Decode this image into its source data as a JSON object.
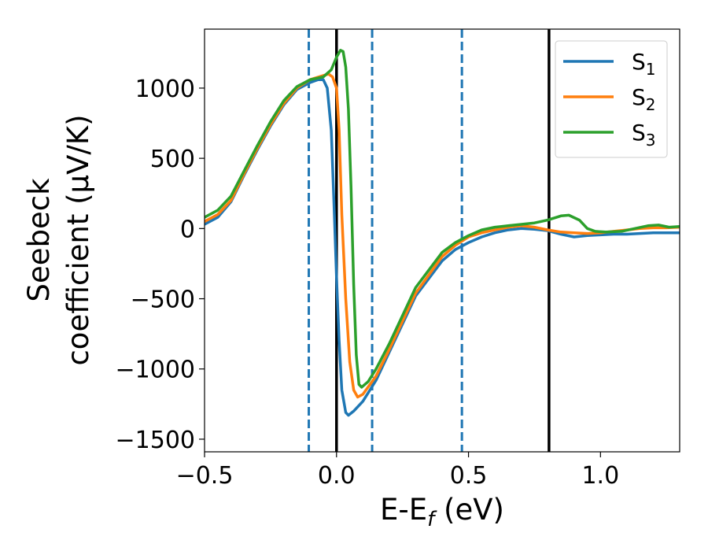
{
  "chart_data": {
    "type": "line",
    "xlabel": "E-E",
    "xlabel_sub": "f",
    "xlabel_unit": " (eV)",
    "ylabel_line1": "Seebeck",
    "ylabel_line2": "coefficient  (μV/K)",
    "xlim": [
      -0.5,
      1.3
    ],
    "ylim": [
      -1590,
      1420
    ],
    "x_ticks": [
      -0.5,
      0.0,
      0.5,
      1.0
    ],
    "x_tick_labels": [
      "−0.5",
      "0.0",
      "0.5",
      "1.0"
    ],
    "y_ticks": [
      1000,
      500,
      0,
      -500,
      -1000,
      -1500
    ],
    "y_tick_labels": [
      "1000",
      "500",
      "0",
      "−500",
      "−1000",
      "−1500"
    ],
    "grid": false,
    "legend_position": "top-right",
    "vertical_lines": [
      {
        "x": -0.105,
        "style": "dashed",
        "color": "#1f77b4"
      },
      {
        "x": 0.0,
        "style": "solid",
        "color": "#000000"
      },
      {
        "x": 0.135,
        "style": "dashed",
        "color": "#1f77b4"
      },
      {
        "x": 0.475,
        "style": "dashed",
        "color": "#1f77b4"
      },
      {
        "x": 0.805,
        "style": "solid",
        "color": "#000000"
      }
    ],
    "series": [
      {
        "name": "S",
        "name_sub": "1",
        "color": "#1f77b4",
        "points": [
          [
            -0.5,
            30
          ],
          [
            -0.45,
            80
          ],
          [
            -0.4,
            190
          ],
          [
            -0.35,
            380
          ],
          [
            -0.3,
            560
          ],
          [
            -0.25,
            730
          ],
          [
            -0.2,
            880
          ],
          [
            -0.15,
            990
          ],
          [
            -0.1,
            1040
          ],
          [
            -0.07,
            1060
          ],
          [
            -0.05,
            1060
          ],
          [
            -0.035,
            1000
          ],
          [
            -0.02,
            700
          ],
          [
            -0.01,
            200
          ],
          [
            0.0,
            -350
          ],
          [
            0.01,
            -800
          ],
          [
            0.02,
            -1150
          ],
          [
            0.035,
            -1310
          ],
          [
            0.045,
            -1330
          ],
          [
            0.065,
            -1300
          ],
          [
            0.1,
            -1230
          ],
          [
            0.15,
            -1080
          ],
          [
            0.2,
            -880
          ],
          [
            0.3,
            -480
          ],
          [
            0.4,
            -230
          ],
          [
            0.45,
            -150
          ],
          [
            0.5,
            -100
          ],
          [
            0.55,
            -60
          ],
          [
            0.6,
            -30
          ],
          [
            0.65,
            -10
          ],
          [
            0.7,
            0
          ],
          [
            0.75,
            -5
          ],
          [
            0.8,
            -15
          ],
          [
            0.85,
            -40
          ],
          [
            0.9,
            -60
          ],
          [
            0.95,
            -50
          ],
          [
            1.0,
            -45
          ],
          [
            1.05,
            -40
          ],
          [
            1.1,
            -40
          ],
          [
            1.15,
            -35
          ],
          [
            1.2,
            -30
          ],
          [
            1.25,
            -30
          ],
          [
            1.3,
            -30
          ]
        ]
      },
      {
        "name": "S",
        "name_sub": "2",
        "color": "#ff7f0e",
        "points": [
          [
            -0.5,
            50
          ],
          [
            -0.45,
            100
          ],
          [
            -0.4,
            200
          ],
          [
            -0.35,
            390
          ],
          [
            -0.3,
            570
          ],
          [
            -0.25,
            740
          ],
          [
            -0.2,
            890
          ],
          [
            -0.15,
            1000
          ],
          [
            -0.1,
            1060
          ],
          [
            -0.05,
            1090
          ],
          [
            -0.03,
            1100
          ],
          [
            -0.015,
            1080
          ],
          [
            0.0,
            1000
          ],
          [
            0.01,
            700
          ],
          [
            0.02,
            100
          ],
          [
            0.035,
            -500
          ],
          [
            0.05,
            -950
          ],
          [
            0.065,
            -1150
          ],
          [
            0.08,
            -1200
          ],
          [
            0.1,
            -1180
          ],
          [
            0.15,
            -1050
          ],
          [
            0.2,
            -860
          ],
          [
            0.3,
            -460
          ],
          [
            0.4,
            -200
          ],
          [
            0.45,
            -120
          ],
          [
            0.5,
            -60
          ],
          [
            0.55,
            -30
          ],
          [
            0.6,
            -10
          ],
          [
            0.65,
            10
          ],
          [
            0.7,
            20
          ],
          [
            0.75,
            10
          ],
          [
            0.8,
            -10
          ],
          [
            0.85,
            -25
          ],
          [
            0.9,
            -30
          ],
          [
            0.95,
            -35
          ],
          [
            1.0,
            -30
          ],
          [
            1.05,
            -20
          ],
          [
            1.1,
            -10
          ],
          [
            1.15,
            0
          ],
          [
            1.2,
            5
          ],
          [
            1.25,
            5
          ],
          [
            1.3,
            10
          ]
        ]
      },
      {
        "name": "S",
        "name_sub": "3",
        "color": "#2ca02c",
        "points": [
          [
            -0.5,
            80
          ],
          [
            -0.45,
            130
          ],
          [
            -0.4,
            230
          ],
          [
            -0.35,
            410
          ],
          [
            -0.3,
            590
          ],
          [
            -0.25,
            760
          ],
          [
            -0.2,
            910
          ],
          [
            -0.15,
            1010
          ],
          [
            -0.1,
            1060
          ],
          [
            -0.05,
            1080
          ],
          [
            -0.02,
            1130
          ],
          [
            0.0,
            1220
          ],
          [
            0.015,
            1270
          ],
          [
            0.025,
            1260
          ],
          [
            0.035,
            1150
          ],
          [
            0.045,
            850
          ],
          [
            0.055,
            300
          ],
          [
            0.065,
            -400
          ],
          [
            0.075,
            -900
          ],
          [
            0.085,
            -1110
          ],
          [
            0.095,
            -1130
          ],
          [
            0.12,
            -1090
          ],
          [
            0.15,
            -1000
          ],
          [
            0.2,
            -820
          ],
          [
            0.3,
            -420
          ],
          [
            0.4,
            -170
          ],
          [
            0.45,
            -100
          ],
          [
            0.5,
            -50
          ],
          [
            0.55,
            -10
          ],
          [
            0.6,
            10
          ],
          [
            0.65,
            20
          ],
          [
            0.7,
            30
          ],
          [
            0.75,
            40
          ],
          [
            0.8,
            60
          ],
          [
            0.85,
            90
          ],
          [
            0.88,
            95
          ],
          [
            0.92,
            60
          ],
          [
            0.95,
            0
          ],
          [
            0.98,
            -20
          ],
          [
            1.02,
            -25
          ],
          [
            1.08,
            -20
          ],
          [
            1.13,
            0
          ],
          [
            1.18,
            20
          ],
          [
            1.22,
            25
          ],
          [
            1.26,
            10
          ],
          [
            1.3,
            15
          ]
        ]
      }
    ]
  }
}
